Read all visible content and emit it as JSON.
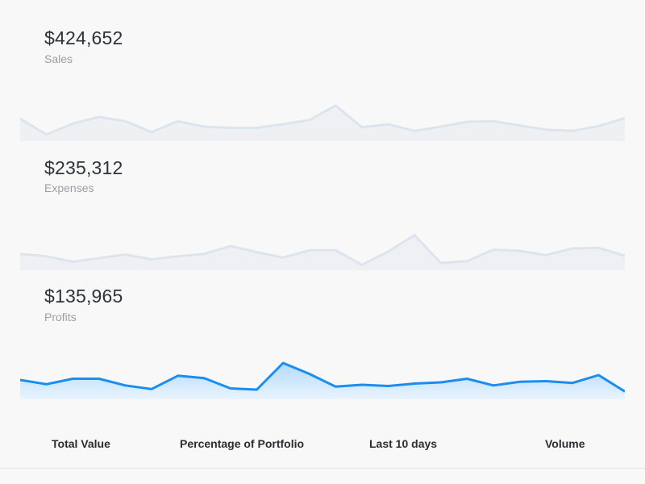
{
  "metrics": [
    {
      "value": "$424,652",
      "label": "Sales"
    },
    {
      "value": "$235,312",
      "label": "Expenses"
    },
    {
      "value": "$135,965",
      "label": "Profits"
    }
  ],
  "tabs": [
    "Total Value",
    "Percentage of Portfolio",
    "Last 10 days",
    "Volume"
  ],
  "colors": {
    "muted_line": "#dde5ec",
    "muted_fill": "#eef0f3",
    "active_line": "#1a8ef0",
    "active_fill_top": "#b5d9fb",
    "active_fill_bottom": "#e9f4fe"
  },
  "chart_data": [
    {
      "type": "area",
      "title": "Sales",
      "x": [
        1,
        2,
        3,
        4,
        5,
        6,
        7,
        8,
        9,
        10,
        11,
        12,
        13,
        14,
        15,
        16,
        17,
        18,
        19,
        20,
        21,
        22,
        23,
        24
      ],
      "values": [
        37,
        11,
        29,
        40,
        33,
        15,
        33,
        24,
        22,
        22,
        28,
        35,
        59,
        23,
        28,
        17,
        24,
        32,
        33,
        26,
        19,
        17,
        25,
        38
      ],
      "ylim": [
        0,
        100
      ],
      "grid": false
    },
    {
      "type": "area",
      "title": "Expenses",
      "x": [
        1,
        2,
        3,
        4,
        5,
        6,
        7,
        8,
        9,
        10,
        11,
        12,
        13,
        14,
        15,
        16,
        17,
        18,
        19,
        20,
        21,
        22,
        23,
        24
      ],
      "values": [
        27,
        23,
        14,
        20,
        26,
        18,
        23,
        27,
        40,
        30,
        21,
        33,
        33,
        9,
        31,
        58,
        12,
        15,
        34,
        32,
        25,
        36,
        37,
        24
      ],
      "ylim": [
        0,
        100
      ],
      "grid": false
    },
    {
      "type": "area",
      "title": "Profits",
      "x": [
        1,
        2,
        3,
        4,
        5,
        6,
        7,
        8,
        9,
        10,
        11,
        12,
        13,
        14,
        15,
        16,
        17,
        18,
        19,
        20,
        21,
        22,
        23,
        24
      ],
      "values": [
        32,
        25,
        34,
        34,
        23,
        17,
        39,
        35,
        18,
        16,
        60,
        42,
        21,
        24,
        22,
        26,
        28,
        34,
        23,
        29,
        30,
        27,
        40,
        13
      ],
      "ylim": [
        0,
        100
      ],
      "grid": false
    }
  ]
}
